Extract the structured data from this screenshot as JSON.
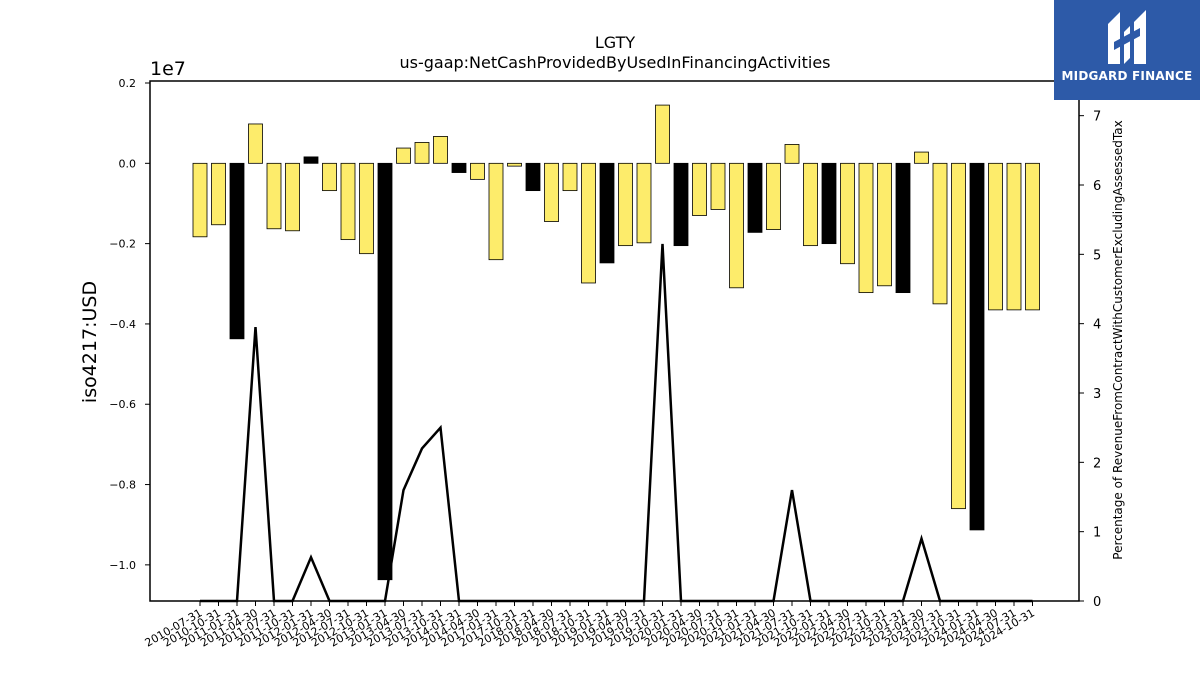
{
  "chart_data": {
    "type": "bar",
    "title": "LGTY",
    "subtitle": "us-gaap:NetCashProvidedByUsedInFinancingActivities",
    "ylabel": "iso4217:USD",
    "y_offset_label": "1e7",
    "y2label": "Percentage of RevenueFromContractWithCustomerExcludingAssessedTax",
    "ylim": [
      -1.09,
      0.205
    ],
    "y2lim": [
      0,
      7.5
    ],
    "yticks": [
      0.2,
      0.0,
      -0.2,
      -0.4,
      -0.6,
      -0.8,
      -1.0
    ],
    "ytick_labels": [
      "0.2",
      "0.0",
      "−0.2",
      "−0.4",
      "−0.6",
      "−0.8",
      "−1.0"
    ],
    "y2ticks": [
      0,
      1,
      2,
      3,
      4,
      5,
      6,
      7
    ],
    "ytick2_labels": [
      "0",
      "1",
      "2",
      "3",
      "4",
      "5",
      "6",
      "7"
    ],
    "grid": false,
    "categories": [
      "2010-07-31",
      "2010-10-31",
      "2011-01-31",
      "2011-04-30",
      "2011-07-31",
      "2011-10-31",
      "2012-01-31",
      "2012-04-30",
      "2012-07-31",
      "2012-10-31",
      "2013-01-31",
      "2013-04-30",
      "2013-07-31",
      "2013-10-31",
      "2014-01-31",
      "2014-04-30",
      "2017-01-31",
      "2017-10-31",
      "2018-01-31",
      "2018-04-30",
      "2018-07-31",
      "2018-10-31",
      "2019-01-31",
      "2019-04-30",
      "2019-07-31",
      "2019-10-31",
      "2020-01-31",
      "2020-04-30",
      "2020-07-31",
      "2020-10-31",
      "2021-01-31",
      "2021-04-30",
      "2021-07-31",
      "2021-10-31",
      "2022-01-31",
      "2022-04-30",
      "2022-07-31",
      "2022-10-31",
      "2023-01-31",
      "2023-04-30",
      "2023-07-31",
      "2023-10-31",
      "2024-01-31",
      "2024-04-30",
      "2024-07-31",
      "2024-10-31"
    ],
    "values": [
      -0.183,
      -0.153,
      -0.437,
      0.098,
      -0.163,
      -0.168,
      0.016,
      -0.068,
      -0.19,
      -0.225,
      -1.037,
      0.038,
      0.052,
      0.067,
      -0.023,
      -0.04,
      -0.24,
      -0.007,
      -0.068,
      -0.145,
      -0.068,
      -0.298,
      -0.248,
      -0.205,
      -0.198,
      0.145,
      -0.205,
      -0.13,
      -0.115,
      -0.31,
      -0.172,
      -0.165,
      0.047,
      -0.205,
      -0.2,
      -0.25,
      -0.322,
      -0.305,
      -0.322,
      0.028,
      -0.35,
      -0.86,
      -0.913,
      -0.365,
      -0.365,
      -0.365
    ],
    "bar_colors": [
      "#fdec6b",
      "#fdec6b",
      "#000000",
      "#fdec6b",
      "#fdec6b",
      "#fdec6b",
      "#000000",
      "#fdec6b",
      "#fdec6b",
      "#fdec6b",
      "#000000",
      "#fdec6b",
      "#fdec6b",
      "#fdec6b",
      "#000000",
      "#fdec6b",
      "#fdec6b",
      "#fdec6b",
      "#000000",
      "#fdec6b",
      "#fdec6b",
      "#fdec6b",
      "#000000",
      "#fdec6b",
      "#fdec6b",
      "#fdec6b",
      "#000000",
      "#fdec6b",
      "#fdec6b",
      "#fdec6b",
      "#000000",
      "#fdec6b",
      "#fdec6b",
      "#fdec6b",
      "#000000",
      "#fdec6b",
      "#fdec6b",
      "#fdec6b",
      "#000000",
      "#fdec6b",
      "#fdec6b",
      "#fdec6b",
      "#000000",
      "#fdec6b",
      "#fdec6b",
      "#fdec6b"
    ],
    "line_values": [
      0,
      0,
      0,
      3.95,
      0,
      0,
      0.63,
      0,
      0,
      0,
      0,
      1.6,
      2.2,
      2.5,
      0,
      0,
      0,
      0,
      0,
      0,
      0,
      0,
      0,
      0,
      0,
      5.15,
      0,
      0,
      0,
      0,
      0,
      0,
      1.6,
      0,
      0,
      0,
      0,
      0,
      0,
      0.9,
      0,
      0,
      0,
      0,
      0,
      0
    ],
    "line_color": "#000000"
  },
  "brand": {
    "name": "MIDGARD FINANCE",
    "icon": "midgard-logo-icon",
    "background": "#2d5aa8"
  }
}
